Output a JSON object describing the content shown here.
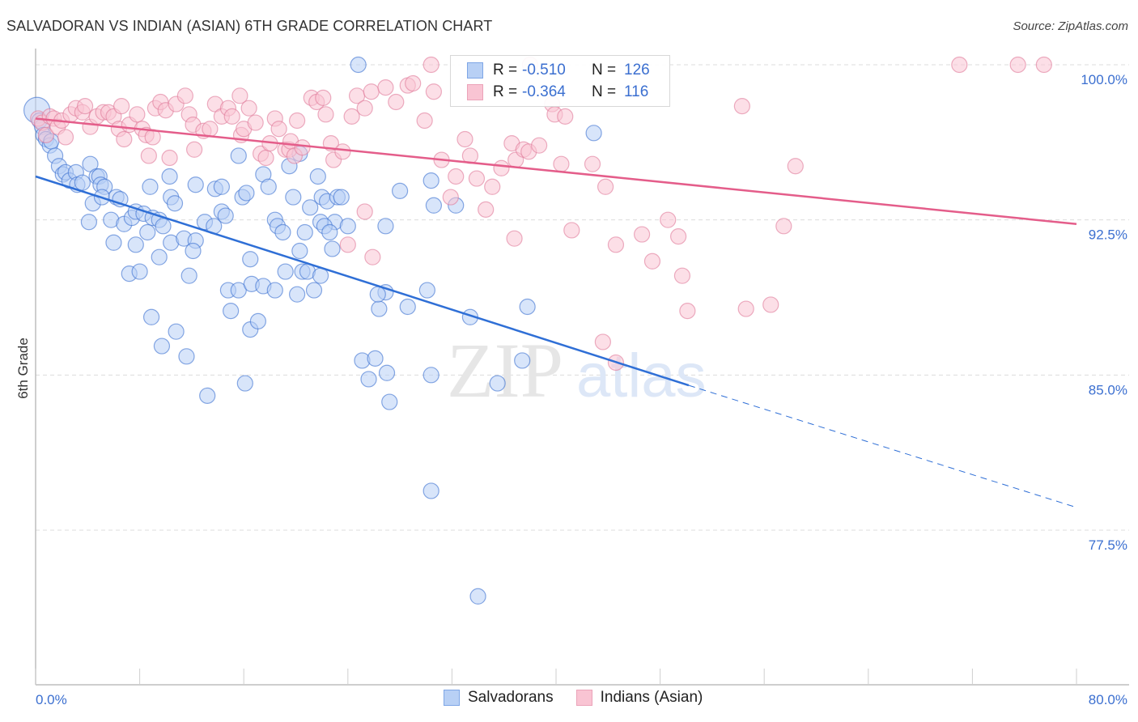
{
  "header": {
    "title": "SALVADORAN VS INDIAN (ASIAN) 6TH GRADE CORRELATION CHART",
    "source": "Source: ZipAtlas.com"
  },
  "legend": {
    "series": [
      {
        "name": "Salvadorans",
        "r_label": "R =",
        "r_value": "-0.510",
        "n_label": "N =",
        "n_value": "126",
        "fill": "#b8d0f5",
        "stroke": "#3b6fd0"
      },
      {
        "name": "Indians (Asian)",
        "r_label": "R =",
        "r_value": "-0.364",
        "n_label": "N =",
        "n_value": "116",
        "fill": "#f9c4d3",
        "stroke": "#e07a9a"
      }
    ]
  },
  "watermark": {
    "zip": "ZIP",
    "atlas": "atlas"
  },
  "chart_data": {
    "type": "scatter",
    "title": "SALVADORAN VS INDIAN (ASIAN) 6TH GRADE CORRELATION CHART",
    "xlabel": "",
    "ylabel": "6th Grade",
    "xlim": [
      0,
      80
    ],
    "ylim": [
      70.8,
      101.2
    ],
    "x_tick_labels": [
      "0.0%",
      "80.0%"
    ],
    "y_ticks": [
      100.0,
      92.5,
      85.0,
      77.5
    ],
    "y_tick_labels": [
      "100.0%",
      "92.5%",
      "85.0%",
      "77.5%"
    ],
    "grid": true,
    "legend_position": "bottom-center",
    "series": [
      {
        "name": "Salvadorans",
        "color": "#3b6fd0",
        "fill": "#b8d0f5",
        "r": -0.51,
        "n": 126,
        "trend": {
          "x0": 0,
          "y0": 94.6,
          "x1": 50.2,
          "y1": 84.5,
          "dashed_to_x": 80,
          "dashed_to_y": 78.6
        },
        "points": [
          [
            0.1,
            97.8
          ],
          [
            0.3,
            97.3
          ],
          [
            0.5,
            97.0
          ],
          [
            0.6,
            96.6
          ],
          [
            0.8,
            96.4
          ],
          [
            1.1,
            96.1
          ],
          [
            1.2,
            96.3
          ],
          [
            1.5,
            95.6
          ],
          [
            1.8,
            95.1
          ],
          [
            2.1,
            94.7
          ],
          [
            2.3,
            94.8
          ],
          [
            2.6,
            94.4
          ],
          [
            3.1,
            94.8
          ],
          [
            3.2,
            94.2
          ],
          [
            3.6,
            94.3
          ],
          [
            4.2,
            95.2
          ],
          [
            4.7,
            94.6
          ],
          [
            4.9,
            94.6
          ],
          [
            5.0,
            94.2
          ],
          [
            5.3,
            94.1
          ],
          [
            4.4,
            93.3
          ],
          [
            5.1,
            93.6
          ],
          [
            6.2,
            93.6
          ],
          [
            6.5,
            93.5
          ],
          [
            4.1,
            92.4
          ],
          [
            5.8,
            92.5
          ],
          [
            6.8,
            92.3
          ],
          [
            7.4,
            92.6
          ],
          [
            7.7,
            92.9
          ],
          [
            8.3,
            92.8
          ],
          [
            9.0,
            92.6
          ],
          [
            9.5,
            92.5
          ],
          [
            6.0,
            91.4
          ],
          [
            7.7,
            91.3
          ],
          [
            8.6,
            91.9
          ],
          [
            9.8,
            92.2
          ],
          [
            10.4,
            91.4
          ],
          [
            11.4,
            91.6
          ],
          [
            12.3,
            91.5
          ],
          [
            13.0,
            92.4
          ],
          [
            7.2,
            89.9
          ],
          [
            8.0,
            90.0
          ],
          [
            9.5,
            90.7
          ],
          [
            11.8,
            89.8
          ],
          [
            12.1,
            91.0
          ],
          [
            13.7,
            92.2
          ],
          [
            14.3,
            92.9
          ],
          [
            14.6,
            92.7
          ],
          [
            8.8,
            94.1
          ],
          [
            10.3,
            94.6
          ],
          [
            10.4,
            93.6
          ],
          [
            10.7,
            93.3
          ],
          [
            12.3,
            94.2
          ],
          [
            13.8,
            94.0
          ],
          [
            14.3,
            94.1
          ],
          [
            15.6,
            95.6
          ],
          [
            15.9,
            93.6
          ],
          [
            16.2,
            93.8
          ],
          [
            17.5,
            94.7
          ],
          [
            17.9,
            94.1
          ],
          [
            19.5,
            95.1
          ],
          [
            19.8,
            93.6
          ],
          [
            20.3,
            95.7
          ],
          [
            21.1,
            93.1
          ],
          [
            21.7,
            94.6
          ],
          [
            22.0,
            93.6
          ],
          [
            22.4,
            93.4
          ],
          [
            23.2,
            93.6
          ],
          [
            23.5,
            93.6
          ],
          [
            23.0,
            92.4
          ],
          [
            24.0,
            92.2
          ],
          [
            18.4,
            92.5
          ],
          [
            18.6,
            92.2
          ],
          [
            19.0,
            91.9
          ],
          [
            20.7,
            91.9
          ],
          [
            21.9,
            92.4
          ],
          [
            22.2,
            92.2
          ],
          [
            22.6,
            91.9
          ],
          [
            20.3,
            91.0
          ],
          [
            22.8,
            91.1
          ],
          [
            26.9,
            92.2
          ],
          [
            14.8,
            89.1
          ],
          [
            15.6,
            89.1
          ],
          [
            15.0,
            88.1
          ],
          [
            16.5,
            90.6
          ],
          [
            16.6,
            89.4
          ],
          [
            17.5,
            89.3
          ],
          [
            18.4,
            89.1
          ],
          [
            19.2,
            90.0
          ],
          [
            20.1,
            88.9
          ],
          [
            20.5,
            90.0
          ],
          [
            20.9,
            90.0
          ],
          [
            21.4,
            89.1
          ],
          [
            21.9,
            89.8
          ],
          [
            8.9,
            87.8
          ],
          [
            9.7,
            86.4
          ],
          [
            10.8,
            87.1
          ],
          [
            11.6,
            85.9
          ],
          [
            16.5,
            87.2
          ],
          [
            17.1,
            87.6
          ],
          [
            13.2,
            84.0
          ],
          [
            16.1,
            84.6
          ],
          [
            25.1,
            85.7
          ],
          [
            25.6,
            84.8
          ],
          [
            26.1,
            85.8
          ],
          [
            27.0,
            85.1
          ],
          [
            26.9,
            89.0
          ],
          [
            26.4,
            88.2
          ],
          [
            26.3,
            88.9
          ],
          [
            28.6,
            88.3
          ],
          [
            30.1,
            89.1
          ],
          [
            33.4,
            87.8
          ],
          [
            35.5,
            84.6
          ],
          [
            37.4,
            85.7
          ],
          [
            30.4,
            85.0
          ],
          [
            27.2,
            83.7
          ],
          [
            30.6,
            93.2
          ],
          [
            32.3,
            93.2
          ],
          [
            28.0,
            93.9
          ],
          [
            30.4,
            94.4
          ],
          [
            37.8,
            88.3
          ],
          [
            42.9,
            96.7
          ],
          [
            30.4,
            79.4
          ],
          [
            34.0,
            74.3
          ],
          [
            24.8,
            100.0
          ]
        ]
      },
      {
        "name": "Indians (Asian)",
        "color": "#e07a9a",
        "fill": "#f9c4d3",
        "r": -0.364,
        "n": 116,
        "trend": {
          "x0": 0,
          "y0": 97.4,
          "x1": 80,
          "y1": 92.3
        },
        "points": [
          [
            0.2,
            97.4
          ],
          [
            0.5,
            97.2
          ],
          [
            0.8,
            96.6
          ],
          [
            1.1,
            97.5
          ],
          [
            1.4,
            97.4
          ],
          [
            1.7,
            97.0
          ],
          [
            2.0,
            97.3
          ],
          [
            2.3,
            96.5
          ],
          [
            2.7,
            97.6
          ],
          [
            3.1,
            97.9
          ],
          [
            3.6,
            97.7
          ],
          [
            3.8,
            98.0
          ],
          [
            4.2,
            97.0
          ],
          [
            4.7,
            97.5
          ],
          [
            5.2,
            97.7
          ],
          [
            5.6,
            97.7
          ],
          [
            6.0,
            97.5
          ],
          [
            6.6,
            98.0
          ],
          [
            6.4,
            96.9
          ],
          [
            6.8,
            96.4
          ],
          [
            7.2,
            97.1
          ],
          [
            7.8,
            97.6
          ],
          [
            8.2,
            96.9
          ],
          [
            8.5,
            96.6
          ],
          [
            9.0,
            96.5
          ],
          [
            8.7,
            95.6
          ],
          [
            9.2,
            97.9
          ],
          [
            9.6,
            98.2
          ],
          [
            10.0,
            97.8
          ],
          [
            10.3,
            95.5
          ],
          [
            10.8,
            98.1
          ],
          [
            11.5,
            98.5
          ],
          [
            11.8,
            97.6
          ],
          [
            12.1,
            97.1
          ],
          [
            12.2,
            95.9
          ],
          [
            12.9,
            96.8
          ],
          [
            13.4,
            96.9
          ],
          [
            13.8,
            98.1
          ],
          [
            14.3,
            97.5
          ],
          [
            14.8,
            97.9
          ],
          [
            15.1,
            97.5
          ],
          [
            15.7,
            98.5
          ],
          [
            15.8,
            96.6
          ],
          [
            16.0,
            96.9
          ],
          [
            16.4,
            97.9
          ],
          [
            16.9,
            97.2
          ],
          [
            17.3,
            95.7
          ],
          [
            17.7,
            95.5
          ],
          [
            18.0,
            96.2
          ],
          [
            18.4,
            97.4
          ],
          [
            18.7,
            96.9
          ],
          [
            19.2,
            95.9
          ],
          [
            19.5,
            95.9
          ],
          [
            19.6,
            96.3
          ],
          [
            19.9,
            95.6
          ],
          [
            20.1,
            97.3
          ],
          [
            20.5,
            96.0
          ],
          [
            21.2,
            98.4
          ],
          [
            21.6,
            98.2
          ],
          [
            22.1,
            98.4
          ],
          [
            22.3,
            97.6
          ],
          [
            22.7,
            96.2
          ],
          [
            22.9,
            95.4
          ],
          [
            23.6,
            95.8
          ],
          [
            24.3,
            97.5
          ],
          [
            24.7,
            98.5
          ],
          [
            25.3,
            97.9
          ],
          [
            25.8,
            98.7
          ],
          [
            26.9,
            98.9
          ],
          [
            27.7,
            98.2
          ],
          [
            28.6,
            99.0
          ],
          [
            29.0,
            99.1
          ],
          [
            30.4,
            100.0
          ],
          [
            29.9,
            97.3
          ],
          [
            30.6,
            98.7
          ],
          [
            31.2,
            95.4
          ],
          [
            31.9,
            93.6
          ],
          [
            32.3,
            94.6
          ],
          [
            33.0,
            96.4
          ],
          [
            33.4,
            95.6
          ],
          [
            33.9,
            94.5
          ],
          [
            34.6,
            93.0
          ],
          [
            35.1,
            94.1
          ],
          [
            35.8,
            95.0
          ],
          [
            36.6,
            96.2
          ],
          [
            36.9,
            95.4
          ],
          [
            37.5,
            95.9
          ],
          [
            37.9,
            95.8
          ],
          [
            38.7,
            96.1
          ],
          [
            39.7,
            98.1
          ],
          [
            39.9,
            97.6
          ],
          [
            40.4,
            95.2
          ],
          [
            40.7,
            97.5
          ],
          [
            41.2,
            92.0
          ],
          [
            42.8,
            95.2
          ],
          [
            43.8,
            94.1
          ],
          [
            44.6,
            91.3
          ],
          [
            46.6,
            91.8
          ],
          [
            47.4,
            90.5
          ],
          [
            48.6,
            92.5
          ],
          [
            49.4,
            91.7
          ],
          [
            49.7,
            89.8
          ],
          [
            50.1,
            88.1
          ],
          [
            54.6,
            88.2
          ],
          [
            56.5,
            88.4
          ],
          [
            57.5,
            92.2
          ],
          [
            58.4,
            95.1
          ],
          [
            54.3,
            98.0
          ],
          [
            75.5,
            100.0
          ],
          [
            71.0,
            100.0
          ],
          [
            77.5,
            100.0
          ],
          [
            25.3,
            92.9
          ],
          [
            24.0,
            91.3
          ],
          [
            25.9,
            90.7
          ],
          [
            36.8,
            91.6
          ],
          [
            43.6,
            86.6
          ],
          [
            44.6,
            85.6
          ],
          [
            38.0,
            100.0
          ]
        ]
      }
    ]
  }
}
